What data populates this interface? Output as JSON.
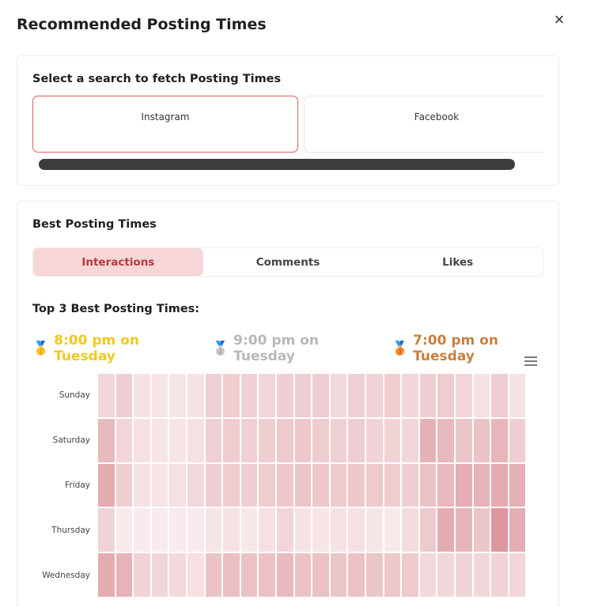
{
  "modal": {
    "title": "Recommended Posting Times",
    "close_icon": "×"
  },
  "search_section": {
    "title": "Select a search to fetch Posting Times",
    "options": [
      {
        "label": "Instagram",
        "selected": true
      },
      {
        "label": "Facebook",
        "selected": false
      }
    ]
  },
  "best_section": {
    "title": "Best Posting Times",
    "tabs": [
      {
        "label": "Interactions",
        "active": true
      },
      {
        "label": "Comments",
        "active": false
      },
      {
        "label": "Likes",
        "active": false
      }
    ],
    "top3_title": "Top 3 Best Posting Times:",
    "top3": [
      {
        "rank": "gold",
        "medal": "🥇",
        "text": "8:00 pm on Tuesday",
        "color": "#f0c91d"
      },
      {
        "rank": "silver",
        "medal": "🥈",
        "text": "9:00 pm on Tuesday",
        "color": "#b8b8b8"
      },
      {
        "rank": "bronze",
        "medal": "🥉",
        "text": "7:00 pm on Tuesday",
        "color": "#c8803e"
      }
    ]
  },
  "chart_data": {
    "type": "heatmap",
    "rows": [
      "Sunday",
      "Saturday",
      "Friday",
      "Thursday",
      "Wednesday"
    ],
    "columns": 24,
    "color_low": "#fbf0f1",
    "color_high": "#d47f87",
    "values": [
      [
        0.22,
        0.3,
        0.12,
        0.1,
        0.1,
        0.12,
        0.28,
        0.3,
        0.28,
        0.24,
        0.3,
        0.3,
        0.3,
        0.2,
        0.28,
        0.26,
        0.3,
        0.22,
        0.3,
        0.32,
        0.24,
        0.12,
        0.3,
        0.12
      ],
      [
        0.48,
        0.24,
        0.14,
        0.1,
        0.1,
        0.14,
        0.28,
        0.32,
        0.28,
        0.3,
        0.34,
        0.36,
        0.32,
        0.28,
        0.32,
        0.26,
        0.26,
        0.22,
        0.56,
        0.5,
        0.38,
        0.4,
        0.52,
        0.3
      ],
      [
        0.6,
        0.3,
        0.12,
        0.1,
        0.14,
        0.2,
        0.3,
        0.32,
        0.3,
        0.32,
        0.36,
        0.38,
        0.36,
        0.34,
        0.36,
        0.34,
        0.32,
        0.3,
        0.4,
        0.5,
        0.58,
        0.54,
        0.6,
        0.56
      ],
      [
        0.26,
        0.06,
        0.04,
        0.04,
        0.04,
        0.04,
        0.1,
        0.12,
        0.08,
        0.14,
        0.24,
        0.12,
        0.1,
        0.12,
        0.14,
        0.1,
        0.06,
        0.18,
        0.34,
        0.6,
        0.54,
        0.38,
        0.8,
        0.58
      ],
      [
        0.6,
        0.54,
        0.26,
        0.24,
        0.2,
        0.14,
        0.4,
        0.44,
        0.4,
        0.42,
        0.48,
        0.4,
        0.42,
        0.38,
        0.42,
        0.38,
        0.36,
        0.34,
        0.2,
        0.22,
        0.26,
        0.22,
        0.26,
        0.24
      ]
    ]
  }
}
